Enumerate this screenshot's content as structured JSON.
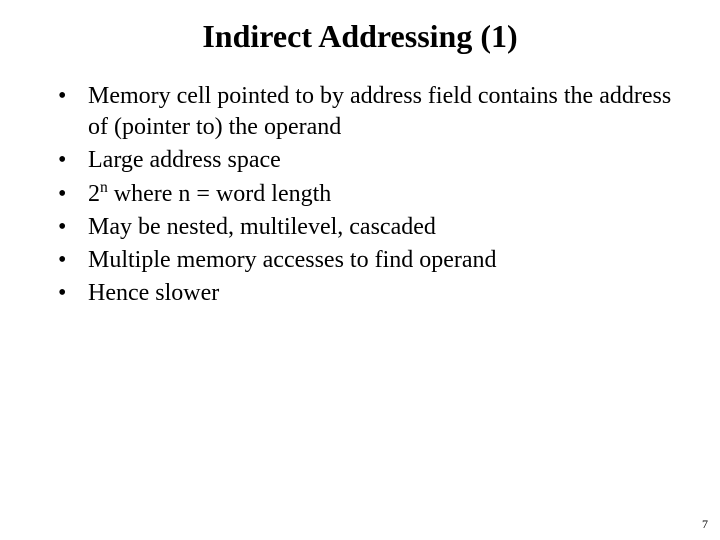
{
  "title": "Indirect Addressing (1)",
  "bullets": {
    "b0": "Memory cell pointed to by address field contains the address of (pointer to) the operand",
    "b1": "Large address space",
    "b2_base": "2",
    "b2_exp": "n",
    "b2_rest": " where n = word length",
    "b3": "May be nested, multilevel, cascaded",
    "b4": "Multiple memory accesses to find operand",
    "b5": "Hence slower"
  },
  "page_number": "7"
}
